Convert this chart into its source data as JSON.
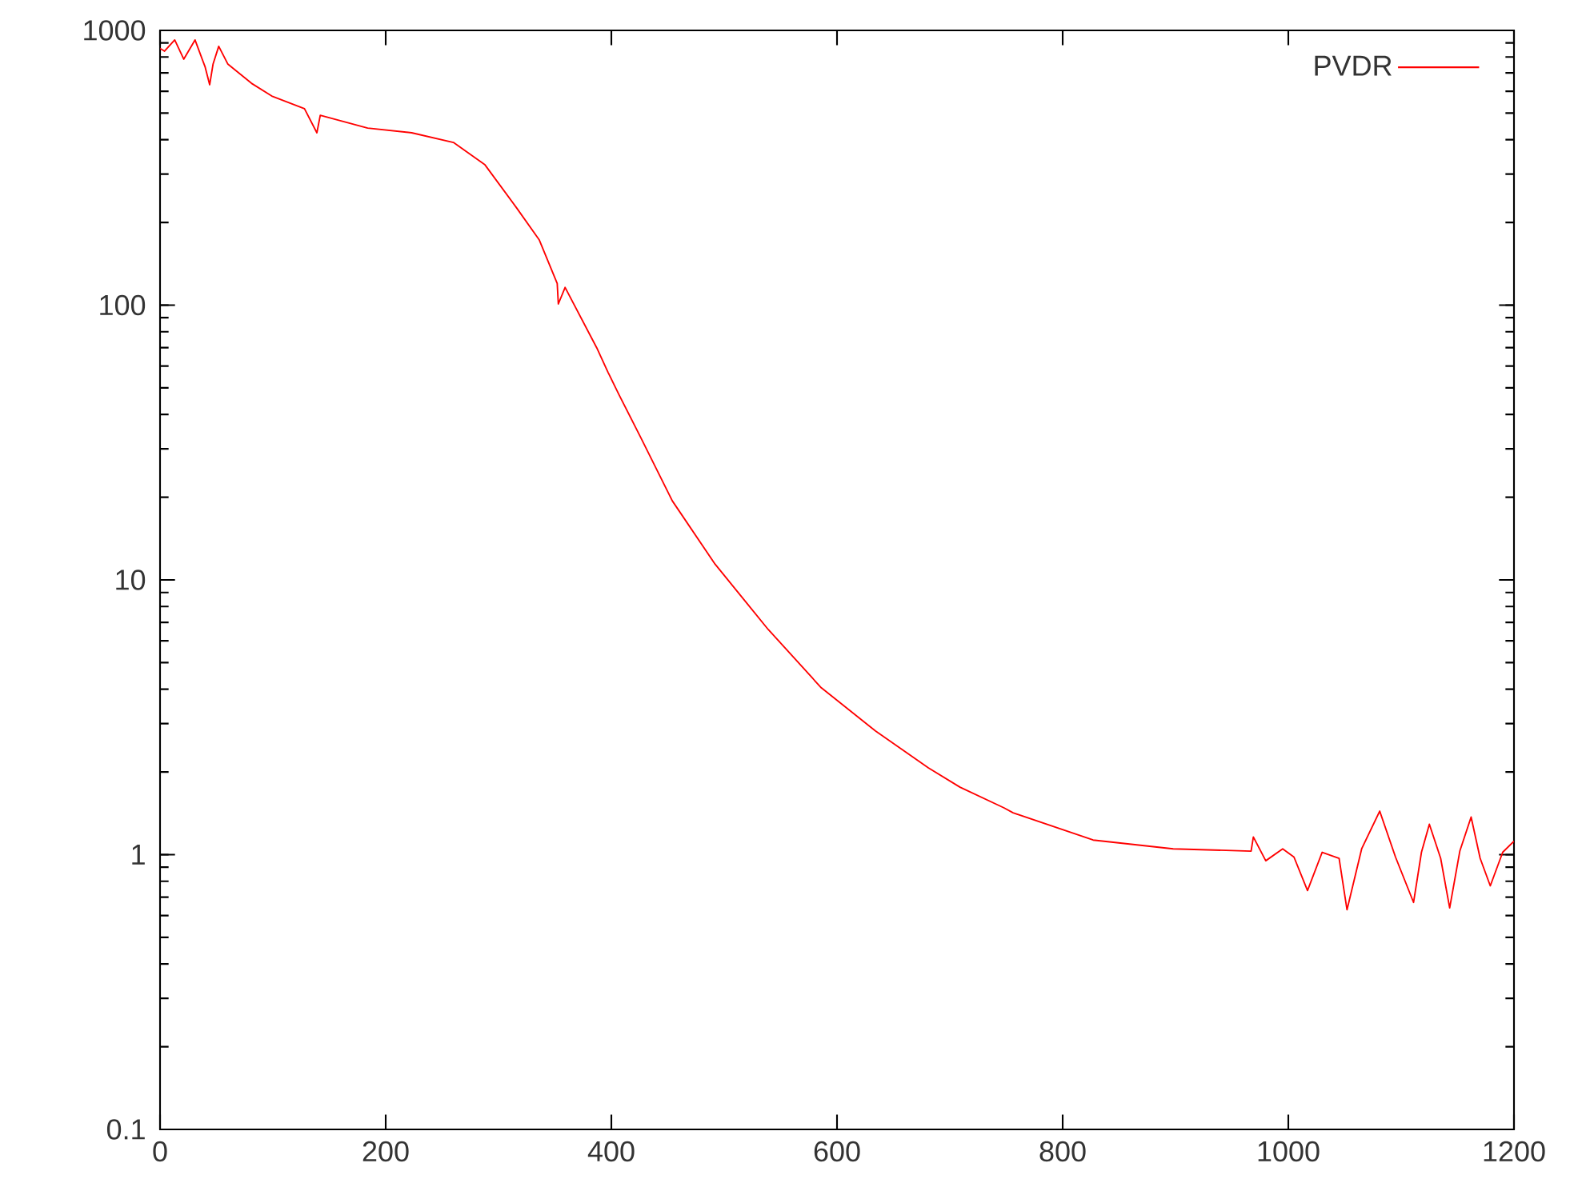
{
  "chart_data": {
    "type": "line",
    "log": "y",
    "legend": "top right",
    "xlim": [
      0,
      1200
    ],
    "xticks": [
      0,
      200,
      400,
      600,
      800,
      1000,
      1200
    ],
    "ylim": [
      0.1,
      1000
    ],
    "yticks": [
      0.1,
      1,
      10,
      100,
      1000
    ],
    "series": [
      {
        "name": "PVDR",
        "color": "#ff0000",
        "x": [
          0,
          4,
          13,
          21,
          31,
          40,
          44,
          47,
          52,
          60,
          81,
          99,
          128,
          139,
          142,
          184,
          223,
          260,
          288,
          316,
          336,
          352,
          353,
          359,
          387,
          397,
          407,
          426,
          454,
          492,
          539,
          586,
          634,
          681,
          709,
          748,
          756,
          827,
          898,
          967,
          969,
          980,
          995,
          1005,
          1017,
          1030,
          1045,
          1052,
          1065,
          1081,
          1095,
          1111,
          1118,
          1125,
          1135,
          1143,
          1152,
          1162,
          1170,
          1179,
          1190,
          1200
        ],
        "values": [
          860,
          840,
          923,
          786,
          923,
          735,
          634,
          755,
          875,
          755,
          642,
          577,
          519,
          424,
          491,
          441,
          424,
          391,
          324,
          226,
          173,
          120,
          101,
          116,
          70,
          57,
          47,
          33,
          19.4,
          11.4,
          6.6,
          4.05,
          2.82,
          2.07,
          1.76,
          1.48,
          1.42,
          1.13,
          1.05,
          1.03,
          1.16,
          0.95,
          1.05,
          0.98,
          0.74,
          1.02,
          0.97,
          0.63,
          1.05,
          1.44,
          0.98,
          0.67,
          1.02,
          1.29,
          0.97,
          0.64,
          1.03,
          1.37,
          0.97,
          0.77,
          1.02,
          1.12
        ]
      }
    ]
  }
}
